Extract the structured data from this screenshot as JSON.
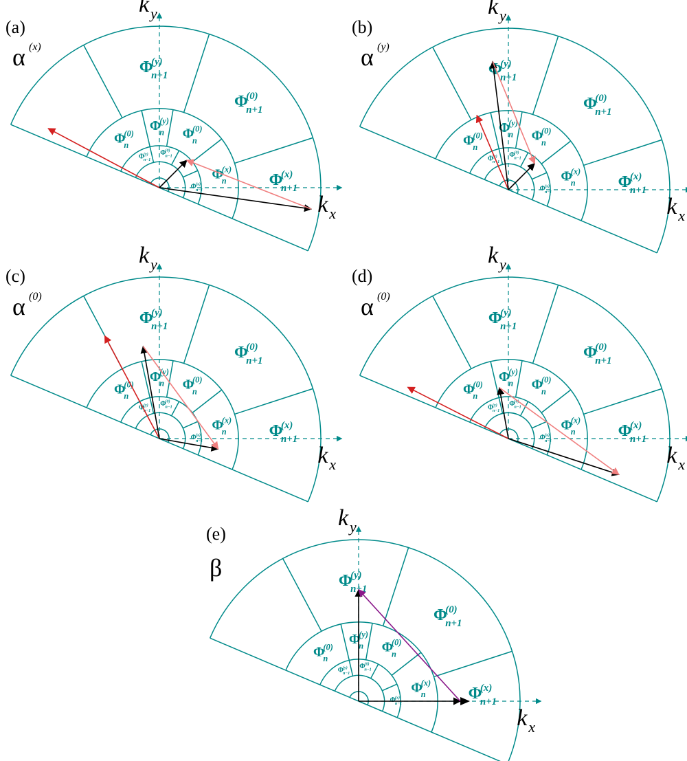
{
  "panels": [
    {
      "id": "a",
      "label": "(a)",
      "greek": "α",
      "greek_sup": "(x)",
      "vectors": [
        {
          "color": "#d42020",
          "dir_deg": 152,
          "len": 0.78
        },
        {
          "color": "#000000",
          "dir_deg": -8,
          "len": 0.95
        },
        {
          "color": "#000000",
          "dir_deg": 45,
          "len": 0.24
        },
        {
          "color": "#f08080",
          "from": "tip1",
          "to": "tip2"
        }
      ]
    },
    {
      "id": "b",
      "label": "(b)",
      "greek": "α",
      "greek_sup": "(y)",
      "vectors": [
        {
          "color": "#d42020",
          "dir_deg": 113,
          "len": 0.5
        },
        {
          "color": "#000000",
          "dir_deg": 97,
          "len": 0.8
        },
        {
          "color": "#000000",
          "dir_deg": 45,
          "len": 0.23
        },
        {
          "color": "#f08080",
          "from": "tip1",
          "to": "tip2"
        }
      ]
    },
    {
      "id": "c",
      "label": "(c)",
      "greek": "α",
      "greek_sup": "(0)",
      "vectors": [
        {
          "color": "#d42020",
          "dir_deg": 118,
          "len": 0.72
        },
        {
          "color": "#000000",
          "dir_deg": 100,
          "len": 0.58
        },
        {
          "color": "#000000",
          "dir_deg": -10,
          "len": 0.37
        },
        {
          "color": "#f08080",
          "from": "tip1",
          "to": "tip2"
        }
      ]
    },
    {
      "id": "d",
      "label": "(d)",
      "greek": "α",
      "greek_sup": "(0)",
      "vectors": [
        {
          "color": "#d42020",
          "dir_deg": 153,
          "len": 0.7
        },
        {
          "color": "#000000",
          "dir_deg": 100,
          "len": 0.32
        },
        {
          "color": "#000000",
          "dir_deg": -18,
          "len": 0.72
        },
        {
          "color": "#f08080",
          "from": "tip1",
          "to": "tip2"
        }
      ]
    },
    {
      "id": "e",
      "label": "(e)",
      "greek": "β",
      "greek_sup": "",
      "vectors": [
        {
          "color": "#000000",
          "dir_deg": 90,
          "len": 0.69
        },
        {
          "color": "#000000",
          "dir_deg": 0,
          "len": 0.63
        },
        {
          "color": "#8b1a8b",
          "from": "tip1",
          "to": "tip2"
        }
      ]
    }
  ],
  "axes": {
    "kx": "k",
    "kx_sub": "x",
    "ky": "k",
    "ky_sub": "y"
  },
  "regions": {
    "outer": [
      {
        "base": "Φ",
        "sup": "(y)",
        "sub": "n+1"
      },
      {
        "base": "Φ",
        "sup": "(0)",
        "sub": "n+1"
      },
      {
        "base": "Φ",
        "sup": "(x)",
        "sub": "n+1"
      }
    ],
    "middle": [
      {
        "base": "Φ",
        "sup": "(0)",
        "sub": "n"
      },
      {
        "base": "Φ",
        "sup": "(y)",
        "sub": "n"
      },
      {
        "base": "Φ",
        "sup": "(0)",
        "sub": "n"
      },
      {
        "base": "Φ",
        "sup": "(x)",
        "sub": "n"
      }
    ],
    "inner": [
      {
        "base": "Φ",
        "sup": "(y)",
        "sub": "n−1"
      },
      {
        "base": "Φ",
        "sup": "(0)",
        "sub": "n−1"
      },
      {
        "base": "Φ",
        "sup": "(x)",
        "sub": "n−1"
      }
    ]
  },
  "colors": {
    "grid": "#008a8a"
  }
}
